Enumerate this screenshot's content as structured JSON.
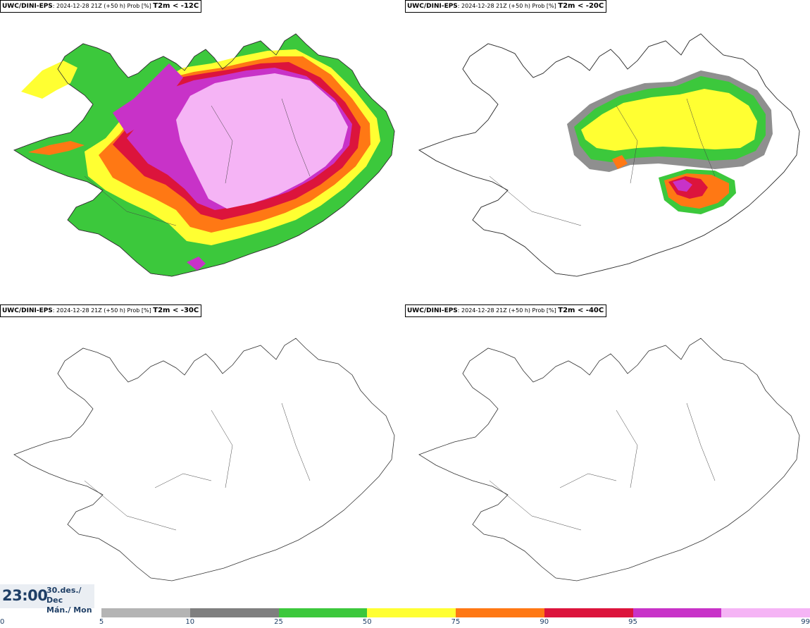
{
  "panels": [
    {
      "model": "UWC/DINI-EPS",
      "run": ": 2024-12-28 21Z (+50 h) Prob [%]",
      "variable": "T2m < -12C"
    },
    {
      "model": "UWC/DINI-EPS",
      "run": ": 2024-12-28 21Z (+50 h) Prob [%]",
      "variable": "T2m < -20C"
    },
    {
      "model": "UWC/DINI-EPS",
      "run": ": 2024-12-28 21Z (+50 h) Prob [%]",
      "variable": "T2m < -30C"
    },
    {
      "model": "UWC/DINI-EPS",
      "run": ": 2024-12-28 21Z (+50 h) Prob [%]",
      "variable": "T2m < -40C"
    }
  ],
  "valid": {
    "time": "23:00",
    "date_line1": "30.des./ Dec",
    "date_line2": "Mán./ Mon"
  },
  "legend": {
    "ticks": [
      "0",
      "5",
      "10",
      "25",
      "50",
      "75",
      "90",
      "95",
      "99"
    ],
    "colors": [
      "#b4b4b4",
      "#7f7f7f",
      "#3cc83c",
      "#ffff32",
      "#ff7814",
      "#dc143c",
      "#c832c8",
      "#f5b4f5"
    ]
  }
}
